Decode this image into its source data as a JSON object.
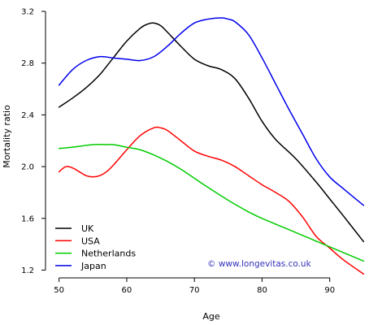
{
  "chart_data": {
    "type": "line",
    "xlabel": "Age",
    "ylabel": "Mortality ratio",
    "xlim": [
      48,
      97
    ],
    "ylim": [
      1.14,
      3.2
    ],
    "x_ticks": [
      50,
      60,
      70,
      80,
      90
    ],
    "y_ticks": [
      1.2,
      1.6,
      2.0,
      2.4,
      2.8,
      3.2
    ],
    "y_tick_labels": [
      "1.2",
      "1.6",
      "2.0",
      "2.4",
      "2.8",
      "3.2"
    ],
    "grid": false,
    "legend_position": "bottom-left",
    "annotation": {
      "text": "© www.longevitas.co.uk",
      "color": "#3333bb"
    },
    "series": [
      {
        "name": "UK",
        "color": "#000000",
        "x": [
          50,
          52,
          54,
          56,
          58,
          60,
          62,
          63,
          64,
          65,
          66,
          68,
          70,
          72,
          74,
          76,
          78,
          80,
          82,
          85,
          88,
          90,
          92,
          95
        ],
        "y": [
          2.46,
          2.53,
          2.61,
          2.71,
          2.84,
          2.97,
          3.07,
          3.1,
          3.11,
          3.09,
          3.04,
          2.93,
          2.83,
          2.78,
          2.75,
          2.68,
          2.53,
          2.35,
          2.21,
          2.06,
          1.88,
          1.75,
          1.62,
          1.42
        ]
      },
      {
        "name": "USA",
        "color": "#ff0000",
        "x": [
          50,
          51,
          52,
          53,
          54,
          55,
          56,
          57,
          58,
          60,
          62,
          64,
          65,
          66,
          68,
          70,
          72,
          74,
          76,
          78,
          80,
          82,
          84,
          86,
          88,
          90,
          92,
          95
        ],
        "y": [
          1.96,
          2.0,
          1.99,
          1.96,
          1.93,
          1.92,
          1.93,
          1.96,
          2.01,
          2.13,
          2.24,
          2.3,
          2.3,
          2.28,
          2.2,
          2.12,
          2.08,
          2.05,
          2.0,
          1.93,
          1.86,
          1.8,
          1.73,
          1.61,
          1.46,
          1.37,
          1.28,
          1.17
        ]
      },
      {
        "name": "Netherlands",
        "color": "#00cc00",
        "x": [
          50,
          52,
          55,
          57,
          58,
          60,
          62,
          64,
          66,
          68,
          70,
          72,
          75,
          78,
          80,
          85,
          90,
          95
        ],
        "y": [
          2.14,
          2.15,
          2.17,
          2.17,
          2.17,
          2.15,
          2.13,
          2.09,
          2.04,
          1.98,
          1.91,
          1.84,
          1.74,
          1.65,
          1.6,
          1.49,
          1.38,
          1.27
        ]
      },
      {
        "name": "Japan",
        "color": "#0000ee",
        "x": [
          50,
          52,
          54,
          56,
          58,
          60,
          62,
          64,
          66,
          68,
          70,
          72,
          74,
          75,
          76,
          78,
          80,
          82,
          84,
          86,
          88,
          90,
          92,
          95
        ],
        "y": [
          2.63,
          2.75,
          2.82,
          2.85,
          2.84,
          2.83,
          2.82,
          2.85,
          2.93,
          3.03,
          3.11,
          3.14,
          3.15,
          3.14,
          3.12,
          3.02,
          2.84,
          2.64,
          2.44,
          2.25,
          2.06,
          1.92,
          1.83,
          1.7
        ]
      }
    ]
  }
}
